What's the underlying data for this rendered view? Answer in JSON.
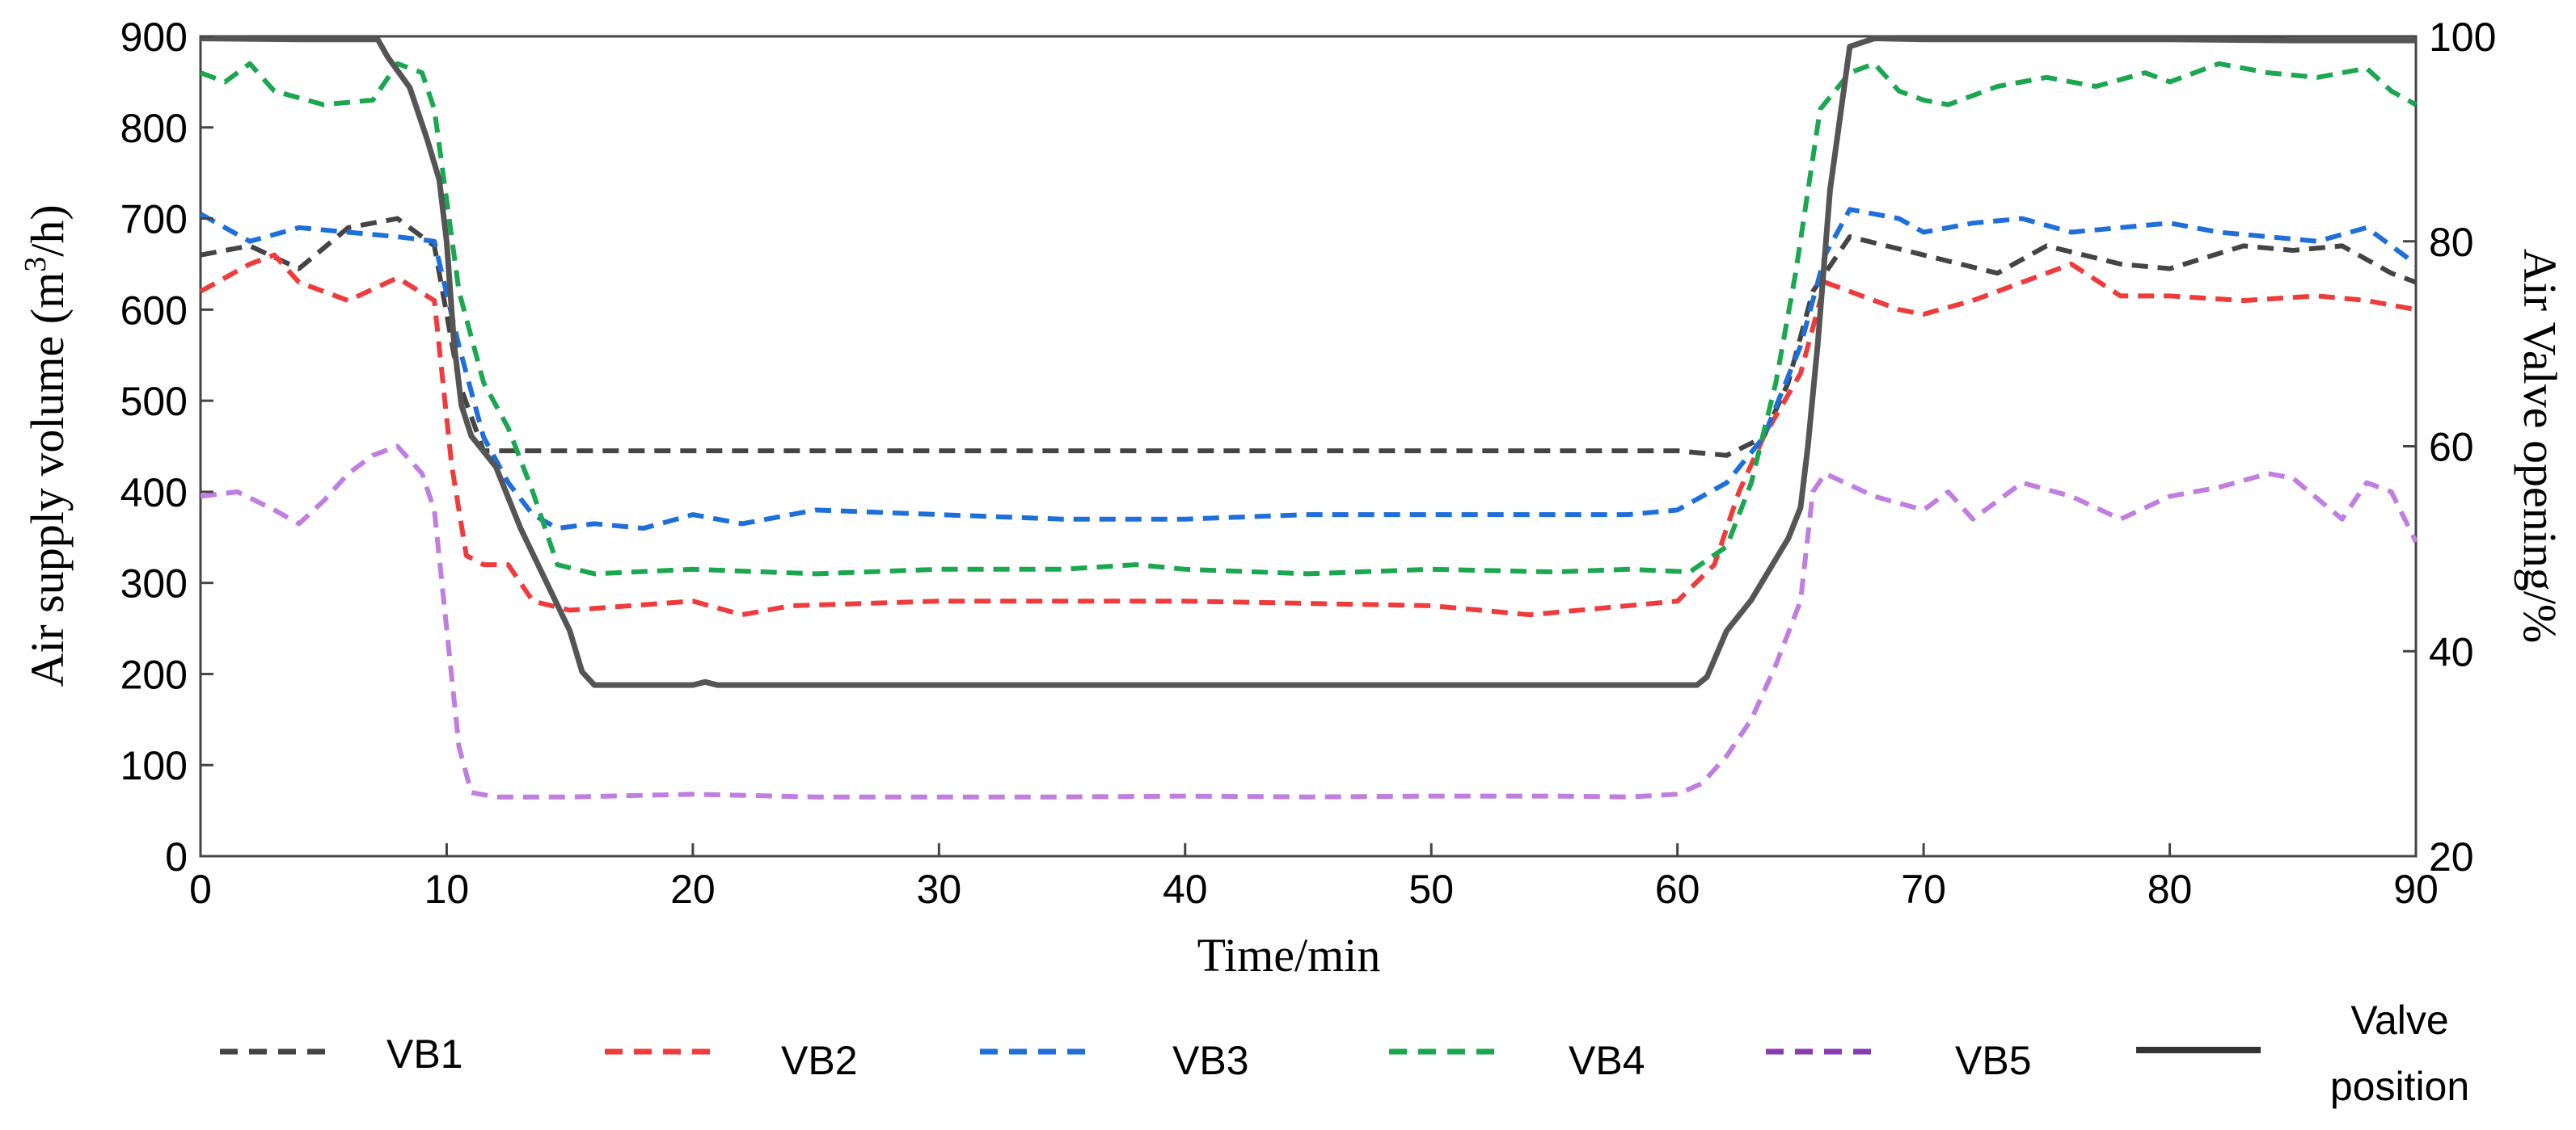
{
  "chart_data": {
    "type": "line",
    "xlabel": "Time/min",
    "ylabel": "Air supply volume (m3/h)",
    "ylabel_parts": {
      "main": "Air supply volume (m",
      "sup": "3",
      "tail": "/h)"
    },
    "y2label": "Air Valve opening/%",
    "xlim": [
      0,
      90
    ],
    "ylim": [
      0,
      900
    ],
    "y2lim": [
      20,
      100
    ],
    "x_ticks": [
      0,
      10,
      20,
      30,
      40,
      50,
      60,
      70,
      80,
      90
    ],
    "y_ticks": [
      0,
      100,
      200,
      300,
      400,
      500,
      600,
      700,
      800,
      900
    ],
    "y2_ticks": [
      20,
      40,
      60,
      80,
      100
    ],
    "grid": false,
    "legend_position": "bottom",
    "legend": [
      "VB1",
      "VB2",
      "VB3",
      "VB4",
      "VB5",
      "Valve position"
    ],
    "legend_valve": [
      "Valve",
      "position"
    ],
    "series": [
      {
        "name": "VB1",
        "axis": "left",
        "style": "dashed",
        "color": "#444444",
        "x": [
          0,
          2,
          4,
          6,
          8,
          9.5,
          10.5,
          11.5,
          13,
          20,
          30,
          40,
          50,
          58,
          60,
          62,
          63.5,
          64.5,
          65.5,
          67,
          70,
          73,
          75,
          78,
          80,
          83,
          85,
          87,
          89,
          90
        ],
        "y": [
          660,
          670,
          645,
          690,
          700,
          670,
          520,
          445,
          445,
          445,
          445,
          445,
          445,
          445,
          445,
          440,
          460,
          520,
          620,
          680,
          660,
          640,
          670,
          650,
          645,
          670,
          665,
          670,
          640,
          630
        ]
      },
      {
        "name": "VB2",
        "axis": "left",
        "style": "dashed",
        "color": "#ef3b3b",
        "x": [
          0,
          2,
          3,
          4,
          6,
          8,
          9.5,
          10.2,
          10.8,
          11.5,
          12.5,
          13.5,
          15,
          20,
          22,
          24,
          30,
          40,
          50,
          54,
          58,
          60,
          61.5,
          62.5,
          63.5,
          65,
          66,
          67,
          69,
          70,
          72,
          74,
          76,
          78,
          80,
          83,
          86,
          88,
          90
        ],
        "y": [
          620,
          650,
          660,
          630,
          610,
          635,
          610,
          430,
          330,
          320,
          320,
          280,
          270,
          280,
          265,
          275,
          280,
          280,
          275,
          265,
          275,
          280,
          320,
          400,
          460,
          530,
          630,
          620,
          600,
          595,
          610,
          630,
          650,
          615,
          615,
          610,
          615,
          610,
          600
        ]
      },
      {
        "name": "VB3",
        "axis": "left",
        "style": "dashed",
        "color": "#1f6fdb",
        "x": [
          0,
          2,
          4,
          6,
          8,
          9.5,
          10.5,
          11.5,
          12.5,
          13.5,
          14.5,
          16,
          18,
          20,
          22,
          25,
          30,
          35,
          40,
          45,
          50,
          55,
          58,
          60,
          62,
          63.5,
          65,
          66,
          67,
          69,
          70,
          72,
          74,
          76,
          78,
          80,
          82,
          84,
          86,
          88,
          90
        ],
        "y": [
          705,
          675,
          690,
          685,
          680,
          675,
          560,
          460,
          410,
          375,
          360,
          365,
          360,
          375,
          365,
          380,
          375,
          370,
          370,
          375,
          375,
          375,
          375,
          380,
          410,
          460,
          560,
          660,
          710,
          700,
          685,
          695,
          700,
          685,
          690,
          695,
          685,
          680,
          675,
          690,
          650
        ]
      },
      {
        "name": "VB4",
        "axis": "left",
        "style": "dashed",
        "color": "#1aa750",
        "x": [
          0,
          1,
          2,
          3,
          5,
          7,
          8,
          9,
          9.5,
          10.5,
          11.5,
          12.5,
          13.5,
          14.5,
          16,
          20,
          25,
          30,
          35,
          38,
          40,
          45,
          50,
          55,
          58,
          60.5,
          62,
          63,
          64,
          64.8,
          65.8,
          67,
          68,
          69,
          70,
          71,
          73,
          75,
          77,
          79,
          80,
          82,
          84,
          86,
          88,
          89,
          90
        ],
        "y": [
          860,
          850,
          870,
          840,
          825,
          830,
          870,
          860,
          820,
          620,
          520,
          470,
          400,
          320,
          310,
          315,
          310,
          315,
          315,
          320,
          315,
          310,
          315,
          312,
          315,
          312,
          340,
          410,
          520,
          640,
          820,
          860,
          870,
          840,
          830,
          825,
          845,
          855,
          845,
          860,
          850,
          870,
          860,
          855,
          865,
          840,
          825
        ]
      },
      {
        "name": "VB5",
        "axis": "left",
        "style": "dashed",
        "color": "#c07ee0",
        "legend_color": "#8a3bb0",
        "x": [
          0,
          1.5,
          3,
          4,
          5,
          6,
          7,
          8,
          9,
          9.5,
          10,
          10.5,
          11,
          12,
          15,
          20,
          25,
          30,
          35,
          40,
          45,
          50,
          55,
          58,
          60,
          61,
          62,
          63,
          64,
          65,
          65.5,
          66,
          68,
          70,
          71,
          72,
          74,
          76,
          78,
          80,
          82,
          84,
          85,
          87,
          88,
          89,
          90
        ],
        "y": [
          395,
          400,
          380,
          365,
          390,
          420,
          440,
          450,
          420,
          380,
          250,
          120,
          70,
          65,
          65,
          68,
          65,
          65,
          65,
          66,
          65,
          66,
          66,
          65,
          68,
          80,
          110,
          150,
          210,
          280,
          400,
          420,
          395,
          380,
          400,
          370,
          410,
          395,
          370,
          395,
          405,
          420,
          415,
          370,
          410,
          400,
          345
        ]
      },
      {
        "name": "Valve position",
        "axis": "right",
        "style": "solid",
        "color": "#555555",
        "x": [
          0,
          4,
          7.2,
          7.6,
          8.5,
          9.2,
          9.7,
          10,
          10.3,
          10.6,
          11,
          12,
          13,
          14,
          15,
          15.5,
          16,
          18,
          20,
          20.5,
          21,
          30,
          40,
          50,
          55,
          58,
          60,
          60.8,
          61.2,
          62,
          63,
          64,
          64.5,
          65,
          65.3,
          65.7,
          66.2,
          67,
          68,
          70,
          75,
          80,
          85,
          90
        ],
        "y": [
          99.8,
          99.7,
          99.7,
          98,
          95,
          90,
          86,
          80,
          70,
          64,
          61,
          58,
          52,
          47,
          42,
          38,
          36.7,
          36.7,
          36.7,
          37,
          36.7,
          36.7,
          36.7,
          36.7,
          36.7,
          36.7,
          36.7,
          36.7,
          37.5,
          42,
          45,
          49,
          51,
          54,
          60,
          70,
          85,
          99,
          99.8,
          99.7,
          99.7,
          99.7,
          99.6,
          99.6
        ]
      }
    ]
  }
}
